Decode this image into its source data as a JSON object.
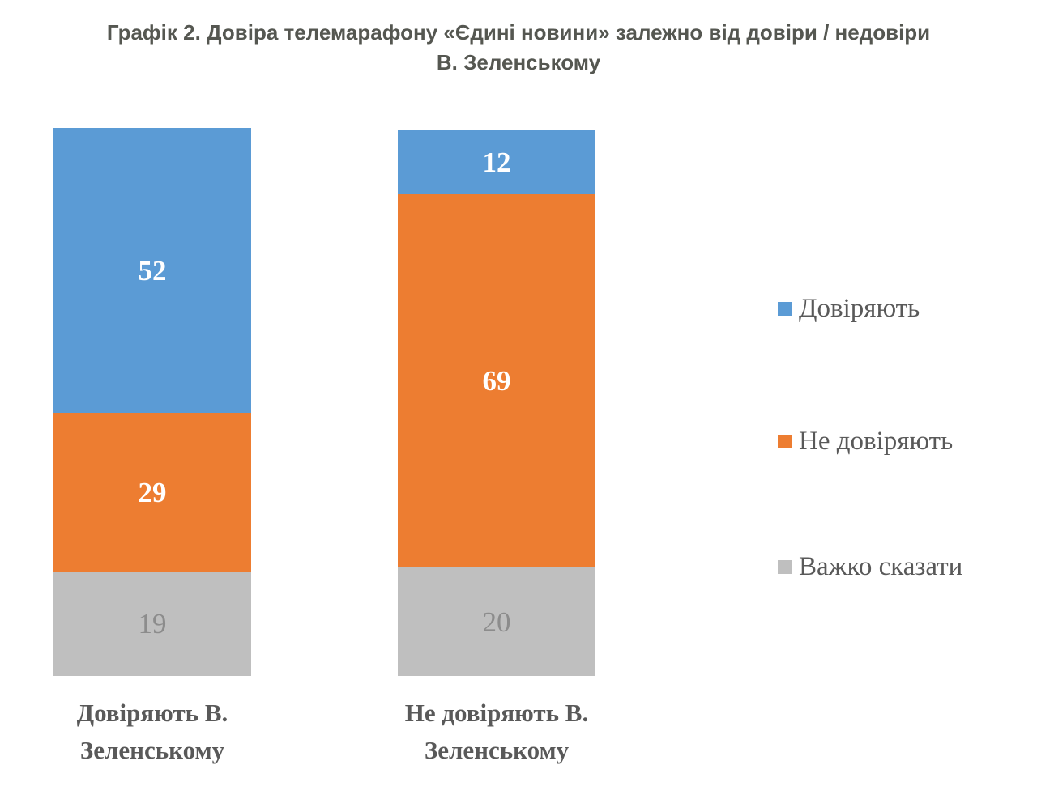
{
  "title": {
    "line1": "Графік 2. Довіра телемарафону «Єдині новини» залежно від довіри / недовіри",
    "line2": "В. Зеленському"
  },
  "chart_data": {
    "type": "bar",
    "subtype": "stacked-column",
    "title": "Графік 2. Довіра телемарафону «Єдині новини» залежно від довіри / недовіри В. Зеленському",
    "categories": [
      "Довіряють В.\nЗеленському",
      "Не довіряють В.\nЗеленському"
    ],
    "series": [
      {
        "name": "Довіряють",
        "values": [
          52,
          12
        ],
        "color": "#5B9BD5",
        "label_color": "#FFFFFF",
        "label_bold": true
      },
      {
        "name": "Не довіряють",
        "values": [
          29,
          69
        ],
        "color": "#ED7D31",
        "label_color": "#FFFFFF",
        "label_bold": true
      },
      {
        "name": "Важко сказати",
        "values": [
          19,
          20
        ],
        "color": "#BFBFBF",
        "label_color": "#8C8C8C",
        "label_bold": false
      }
    ],
    "xlabel": "",
    "ylabel": "",
    "ylim": [
      0,
      101
    ],
    "grid": false,
    "legend_position": "right",
    "background": "#FFFFFF",
    "text_color": "#595959"
  }
}
